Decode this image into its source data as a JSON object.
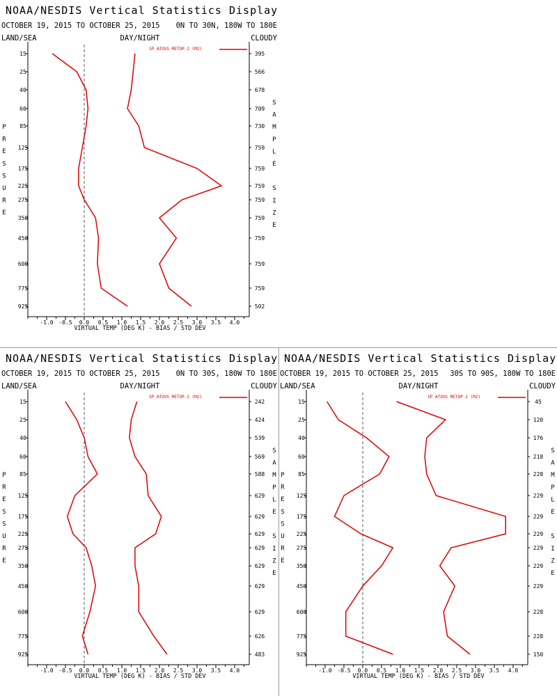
{
  "colors": {
    "series": "#dd0000",
    "text": "#000000",
    "zero_line": "#555555",
    "divider": "#9a9a9a"
  },
  "panels": [
    {
      "title": "NOAA/NESDIS Vertical Statistics Display",
      "date_range": "OCTOBER 19, 2015 TO OCTOBER 25, 2015",
      "region": "0N TO 30N, 180W TO 180E",
      "land_sea": "LAND/SEA",
      "day_night": "DAY/NIGHT",
      "cloudy": "CLOUDY",
      "legend": "SP ATOVS METOP-2 (M2)",
      "left_axis_title": [
        "P",
        "R",
        "E",
        "S",
        "S",
        "U",
        "R",
        "E"
      ],
      "right_axis_title": [
        "S",
        "A",
        "M",
        "P",
        "L",
        "E",
        "",
        "S",
        "I",
        "Z",
        "E"
      ],
      "xlabel": "VIRTUAL TEMP (DEG K) - BIAS / STD DEV"
    },
    {
      "title": "NOAA/NESDIS Vertical Statistics Display",
      "date_range": "OCTOBER 19, 2015 TO OCTOBER 25, 2015",
      "region": "0N TO 30S, 180W TO 180E",
      "land_sea": "LAND/SEA",
      "day_night": "DAY/NIGHT",
      "cloudy": "CLOUDY",
      "legend": "SP ATOVS METOP-2 (M2)",
      "left_axis_title": [
        "P",
        "R",
        "E",
        "S",
        "S",
        "U",
        "R",
        "E"
      ],
      "right_axis_title": [
        "S",
        "A",
        "M",
        "P",
        "L",
        "E",
        "",
        "S",
        "I",
        "Z",
        "E"
      ],
      "xlabel": "VIRTUAL TEMP (DEG K) - BIAS / STD DEV"
    },
    {
      "title": "NOAA/NESDIS Vertical Statistics Display",
      "date_range": "OCTOBER 19, 2015 TO OCTOBER 25, 2015",
      "region": "30S TO 90S, 180W TO 180E",
      "land_sea": "LAND/SEA",
      "day_night": "DAY/NIGHT",
      "cloudy": "CLOUDY",
      "legend": "SP ATOVS METOP-2 (M2)",
      "left_axis_title": [
        "P",
        "R",
        "E",
        "S",
        "S",
        "U",
        "R",
        "E"
      ],
      "right_axis_title": [
        "S",
        "A",
        "M",
        "P",
        "L",
        "E",
        "",
        "S",
        "I",
        "Z",
        "E"
      ],
      "xlabel": "VIRTUAL TEMP (DEG K) - BIAS / STD DEV"
    }
  ],
  "chart_data": [
    {
      "type": "line",
      "pressure_levels": [
        15,
        25,
        40,
        60,
        85,
        125,
        175,
        225,
        275,
        350,
        450,
        600,
        775,
        925
      ],
      "x_ticks": [
        "-1.0",
        "-0.5",
        "0.0",
        "0.5",
        "1.0",
        "1.5",
        "2.0",
        "2.5",
        "3.0",
        "3.5",
        "4.0"
      ],
      "xlim": [
        -1.5,
        4.5
      ],
      "ylabel": "PRESSURE",
      "y2label": "SAMPLE SIZE",
      "xlabel": "VIRTUAL TEMP (DEG K) - BIAS / STD DEV",
      "sample_size": [
        395,
        566,
        678,
        709,
        730,
        759,
        759,
        759,
        759,
        759,
        759,
        759,
        759,
        502
      ],
      "series": [
        {
          "name": "BIAS",
          "values": [
            -0.85,
            -0.2,
            0.05,
            0.1,
            0.05,
            -0.05,
            -0.15,
            -0.15,
            0.0,
            0.3,
            0.38,
            0.35,
            0.45,
            1.15
          ]
        },
        {
          "name": "STD DEV",
          "values": [
            1.35,
            1.3,
            1.25,
            1.15,
            1.45,
            1.6,
            3.0,
            3.65,
            2.6,
            2.0,
            2.45,
            2.0,
            2.25,
            2.85
          ]
        }
      ]
    },
    {
      "type": "line",
      "pressure_levels": [
        15,
        25,
        40,
        60,
        85,
        125,
        175,
        225,
        275,
        350,
        450,
        600,
        775,
        925
      ],
      "x_ticks": [
        "-1.0",
        "-0.5",
        "0.0",
        "0.5",
        "1.0",
        "1.5",
        "2.0",
        "2.5",
        "3.0",
        "3.5",
        "4.0"
      ],
      "xlim": [
        -1.5,
        4.5
      ],
      "ylabel": "PRESSURE",
      "y2label": "SAMPLE SIZE",
      "xlabel": "VIRTUAL TEMP (DEG K) - BIAS / STD DEV",
      "sample_size": [
        242,
        424,
        539,
        569,
        588,
        629,
        629,
        629,
        629,
        629,
        629,
        629,
        626,
        483
      ],
      "series": [
        {
          "name": "BIAS",
          "values": [
            -0.5,
            -0.2,
            0.0,
            0.1,
            0.35,
            -0.25,
            -0.45,
            -0.3,
            0.05,
            0.2,
            0.3,
            0.15,
            -0.05,
            0.1
          ]
        },
        {
          "name": "STD DEV",
          "values": [
            1.4,
            1.25,
            1.2,
            1.35,
            1.65,
            1.7,
            2.05,
            1.9,
            1.35,
            1.35,
            1.45,
            1.45,
            1.85,
            2.2
          ]
        }
      ]
    },
    {
      "type": "line",
      "pressure_levels": [
        15,
        25,
        40,
        60,
        85,
        125,
        175,
        225,
        275,
        350,
        450,
        600,
        775,
        925
      ],
      "x_ticks": [
        "-1.0",
        "-0.5",
        "0.0",
        "0.5",
        "1.0",
        "1.5",
        "2.0",
        "2.5",
        "3.0",
        "3.5",
        "4.0"
      ],
      "xlim": [
        -1.5,
        4.5
      ],
      "ylabel": "PRESSURE",
      "y2label": "SAMPLE SIZE",
      "xlabel": "VIRTUAL TEMP (DEG K) - BIAS / STD DEV",
      "sample_size": [
        45,
        120,
        176,
        218,
        228,
        229,
        229,
        229,
        229,
        229,
        229,
        228,
        228,
        150
      ],
      "series": [
        {
          "name": "BIAS",
          "values": [
            -0.95,
            -0.65,
            0.1,
            0.7,
            0.45,
            -0.5,
            -0.75,
            -0.05,
            0.8,
            0.5,
            0.0,
            -0.45,
            -0.45,
            0.8
          ]
        },
        {
          "name": "STD DEV",
          "values": [
            0.9,
            2.2,
            1.7,
            1.65,
            1.7,
            1.95,
            3.8,
            3.8,
            2.35,
            2.05,
            2.45,
            2.15,
            2.25,
            2.85
          ]
        }
      ]
    }
  ]
}
